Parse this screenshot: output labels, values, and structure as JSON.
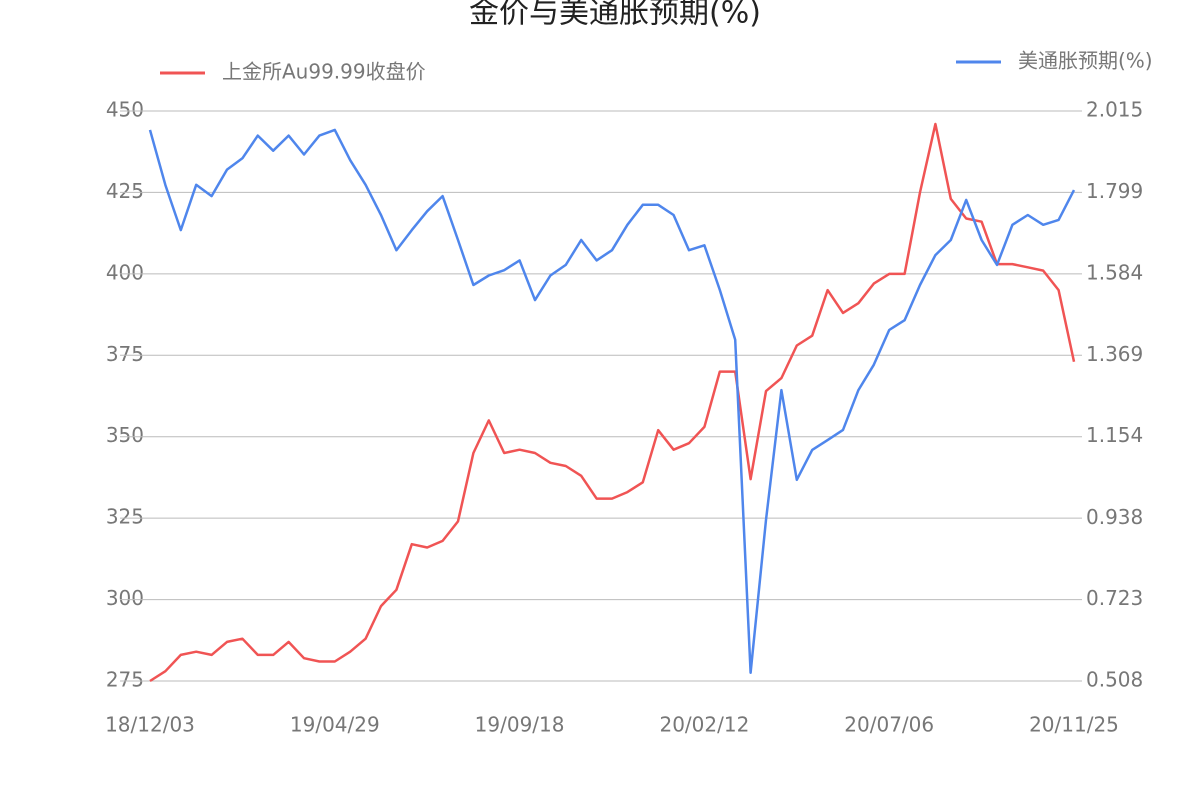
{
  "chart_data": {
    "type": "line",
    "title": "金价与美通胀预期(%)",
    "categories": [
      "18/12/03",
      null,
      null,
      null,
      null,
      null,
      null,
      null,
      null,
      null,
      null,
      null,
      "19/04/29",
      null,
      null,
      null,
      null,
      null,
      null,
      null,
      null,
      null,
      null,
      null,
      "19/09/18",
      null,
      null,
      null,
      null,
      null,
      null,
      null,
      null,
      null,
      null,
      null,
      "20/02/12",
      null,
      null,
      null,
      null,
      null,
      null,
      null,
      null,
      null,
      null,
      null,
      "20/07/06",
      null,
      null,
      null,
      null,
      null,
      null,
      null,
      null,
      null,
      null,
      null,
      "20/11/25"
    ],
    "series": [
      {
        "name": "上金所Au99.99收盘价",
        "color": "#f05454",
        "axis": "y",
        "values": [
          275,
          278,
          283,
          284,
          283,
          287,
          288,
          283,
          283,
          287,
          282,
          281,
          281,
          284,
          288,
          298,
          303,
          317,
          316,
          318,
          324,
          345,
          355,
          345,
          346,
          345,
          342,
          341,
          338,
          331,
          331,
          333,
          336,
          352,
          346,
          348,
          353,
          370,
          370,
          337,
          364,
          368,
          378,
          381,
          395,
          388,
          391,
          397,
          400,
          400,
          425,
          446,
          423,
          417,
          416,
          403,
          403,
          402,
          401,
          395,
          373
        ]
      },
      {
        "name": "美通胀预期(%)",
        "color": "#4f86ec",
        "axis": "y2",
        "values": [
          1.965,
          1.819,
          1.7,
          1.82,
          1.79,
          1.86,
          1.89,
          1.95,
          1.91,
          1.95,
          1.9,
          1.95,
          1.965,
          1.885,
          1.82,
          1.74,
          1.647,
          1.7,
          1.75,
          1.79,
          1.674,
          1.555,
          1.58,
          1.594,
          1.62,
          1.515,
          1.58,
          1.608,
          1.674,
          1.62,
          1.647,
          1.714,
          1.767,
          1.767,
          1.74,
          1.647,
          1.66,
          1.542,
          1.41,
          0.53,
          0.934,
          1.277,
          1.04,
          1.119,
          1.145,
          1.172,
          1.277,
          1.344,
          1.436,
          1.462,
          1.555,
          1.634,
          1.674,
          1.78,
          1.674,
          1.608,
          1.714,
          1.74,
          1.714,
          1.727,
          1.806
        ]
      }
    ],
    "ylim": [
      275,
      450
    ],
    "yticks": [
      275,
      300,
      325,
      350,
      375,
      400,
      425,
      450
    ],
    "y2lim": [
      0.508,
      2.015
    ],
    "y2ticks": [
      0.508,
      0.723,
      0.938,
      1.154,
      1.369,
      1.584,
      1.799,
      2.015
    ],
    "grid": true
  }
}
